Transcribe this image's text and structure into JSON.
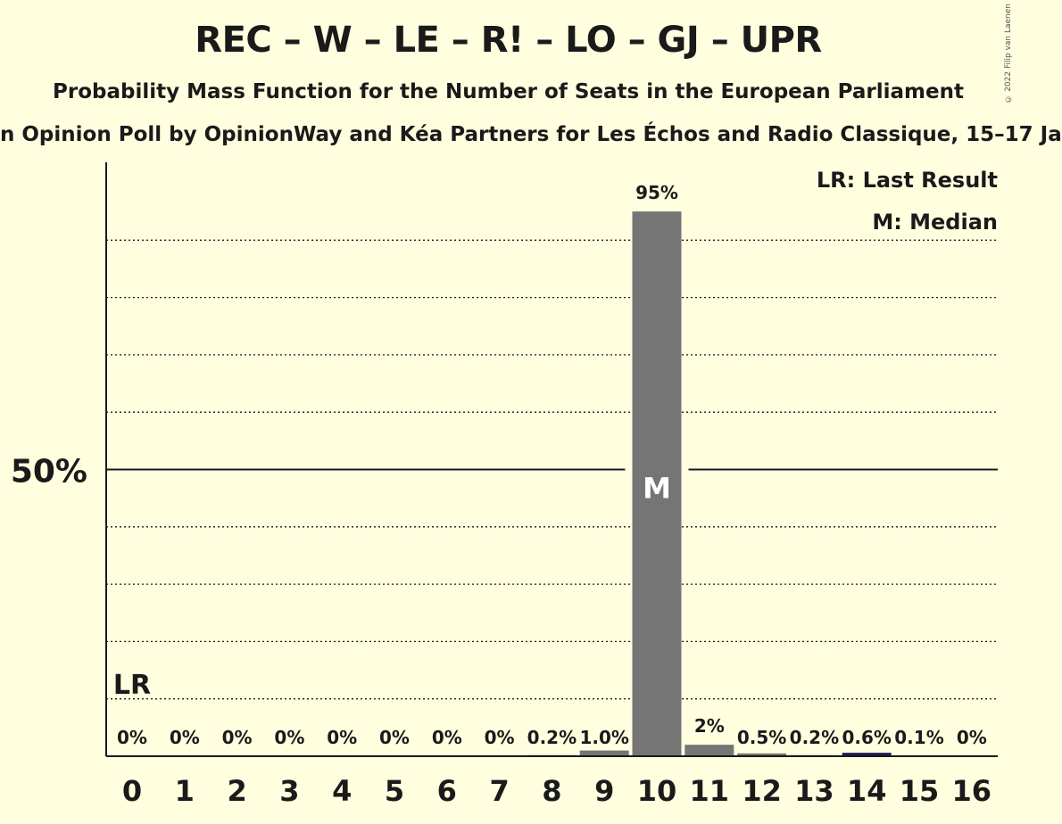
{
  "header": {
    "title": "REC – W – LE – R! – LO – GJ – UPR",
    "subtitle": "Probability Mass Function for the Number of Seats in the European Parliament",
    "poll": "n Opinion Poll by OpinionWay and Kéa Partners for Les Échos and Radio Classique, 15–17 Ja",
    "copyright": "© 2022 Filip van Laenen"
  },
  "legend": {
    "last_result": "LR: Last Result",
    "median": "M: Median"
  },
  "colors": {
    "background": "#ffffe0",
    "bar": "#757575",
    "bar_highlight": "#1a1a5a",
    "text": "#1a1a1a"
  },
  "chart_data": {
    "type": "bar",
    "categories": [
      "0",
      "1",
      "2",
      "3",
      "4",
      "5",
      "6",
      "7",
      "8",
      "9",
      "10",
      "11",
      "12",
      "13",
      "14",
      "15",
      "16"
    ],
    "values": [
      0,
      0,
      0,
      0,
      0,
      0,
      0,
      0,
      0.2,
      1.0,
      95,
      2,
      0.5,
      0.2,
      0.6,
      0.1,
      0
    ],
    "labels": [
      "0%",
      "0%",
      "0%",
      "0%",
      "0%",
      "0%",
      "0%",
      "0%",
      "0.2%",
      "1.0%",
      "95%",
      "2%",
      "0.5%",
      "0.2%",
      "0.6%",
      "0.1%",
      "0%"
    ],
    "ylim": [
      0,
      100
    ],
    "y_tick_label": "50%",
    "y_tick_value": 50,
    "gridlines": [
      10,
      20,
      30,
      40,
      60,
      70,
      80,
      90
    ],
    "median_index": 10,
    "median_label": "M",
    "last_result_index": 0,
    "last_result_label": "LR",
    "highlight_index": 14,
    "legend_position": "top-right"
  }
}
